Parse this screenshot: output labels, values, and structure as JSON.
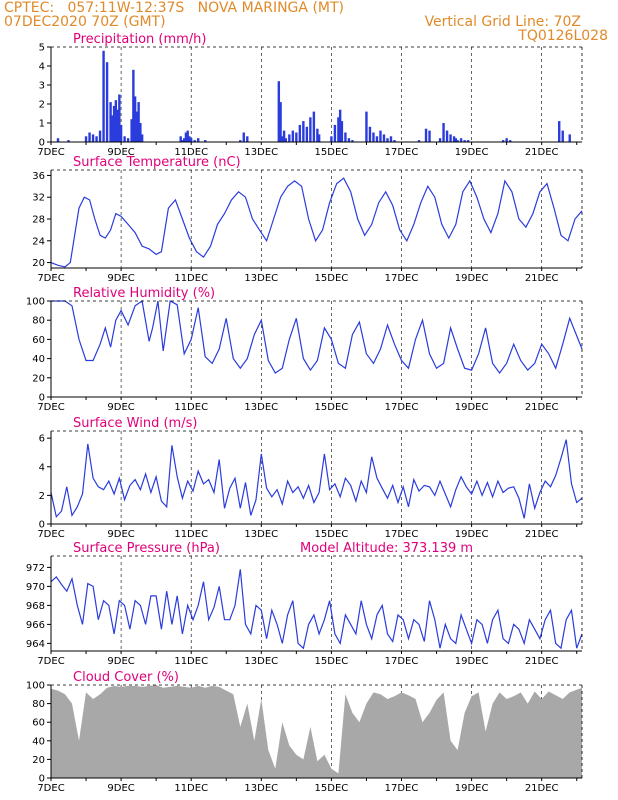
{
  "header": {
    "line1": "CPTEC:   057:11W-12:37S   NOVA MARINGA (MT)",
    "line2_left": "07DEC2020 70Z (GMT)",
    "line2_right": "Vertical Grid Line: 70Z",
    "line3_right": "TQ0126L028"
  },
  "colors": {
    "header": "#e08a2a",
    "title": "#e0007a",
    "line": "#2a3cdc",
    "cloud": "#a8a8a8"
  },
  "chart_data": [
    {
      "type": "bar",
      "title": "Precipitation (mm/h)",
      "ylim": [
        0,
        5
      ],
      "yticks": [
        "0",
        "1",
        "2",
        "3",
        "4",
        "5"
      ],
      "xticks": [
        "7DEC",
        "9DEC",
        "11DEC",
        "13DEC",
        "15DEC",
        "17DEC",
        "19DEC",
        "21DEC"
      ],
      "x": [
        0.2,
        0.5,
        1.0,
        1.1,
        1.2,
        1.3,
        1.4,
        1.5,
        1.6,
        1.7,
        1.75,
        1.8,
        1.85,
        1.9,
        1.95,
        2.0,
        2.1,
        2.2,
        2.3,
        2.35,
        2.4,
        2.45,
        2.5,
        2.55,
        2.6,
        3.7,
        3.75,
        3.8,
        3.85,
        3.9,
        3.95,
        4.0,
        4.1,
        4.2,
        4.4,
        5.4,
        5.5,
        5.6,
        6.5,
        6.55,
        6.6,
        6.65,
        6.7,
        6.8,
        6.9,
        7.0,
        7.1,
        7.2,
        7.3,
        7.4,
        7.5,
        7.6,
        7.65,
        8.0,
        8.1,
        8.2,
        8.25,
        8.3,
        8.4,
        8.5,
        8.6,
        9.0,
        9.1,
        9.2,
        9.3,
        9.4,
        9.5,
        9.6,
        9.7,
        9.8,
        10.5,
        10.7,
        10.8,
        11.1,
        11.2,
        11.3,
        11.4,
        11.5,
        11.55,
        11.6,
        11.7,
        11.8,
        11.9,
        12.9,
        13.0,
        13.1,
        14.5,
        14.6,
        14.8
      ],
      "values": [
        0.2,
        0.1,
        0.3,
        0.5,
        0.4,
        0.3,
        0.6,
        4.8,
        4.2,
        2.1,
        1.4,
        1.9,
        2.2,
        1.7,
        2.5,
        0.9,
        0.3,
        0.2,
        1.2,
        3.8,
        2.4,
        1.6,
        2.1,
        1.0,
        0.4,
        0.3,
        0.1,
        0.2,
        0.5,
        0.6,
        0.3,
        0.2,
        0.1,
        0.2,
        0.1,
        0.1,
        0.5,
        0.3,
        3.2,
        2.1,
        0.3,
        0.6,
        0.2,
        0.4,
        0.6,
        0.5,
        0.9,
        1.1,
        0.8,
        1.3,
        1.6,
        0.7,
        0.4,
        0.3,
        0.9,
        1.3,
        1.7,
        1.1,
        0.5,
        0.2,
        0.1,
        1.6,
        0.8,
        0.5,
        0.3,
        0.6,
        0.4,
        0.2,
        0.3,
        0.1,
        0.1,
        0.7,
        0.6,
        0.2,
        1.0,
        0.6,
        0.4,
        0.3,
        0.2,
        0.1,
        0.2,
        0.1,
        0.1,
        0.1,
        0.2,
        0.1,
        1.1,
        0.6,
        0.4
      ]
    },
    {
      "type": "line",
      "title": "Surface Temperature (nC)",
      "ylim": [
        19,
        37
      ],
      "yticks": [
        "20",
        "24",
        "28",
        "32",
        "36"
      ],
      "xticks": [
        "7DEC",
        "9DEC",
        "11DEC",
        "13DEC",
        "15DEC",
        "17DEC",
        "19DEC",
        "21DEC"
      ],
      "x": [
        0,
        0.2,
        0.4,
        0.55,
        0.7,
        0.8,
        0.95,
        1.1,
        1.25,
        1.4,
        1.55,
        1.7,
        1.85,
        2.0,
        2.2,
        2.4,
        2.6,
        2.8,
        3.0,
        3.15,
        3.35,
        3.55,
        3.75,
        3.95,
        4.15,
        4.35,
        4.55,
        4.75,
        4.95,
        5.15,
        5.35,
        5.55,
        5.75,
        5.95,
        6.15,
        6.35,
        6.55,
        6.75,
        6.95,
        7.15,
        7.35,
        7.55,
        7.75,
        7.95,
        8.15,
        8.35,
        8.55,
        8.75,
        8.95,
        9.15,
        9.35,
        9.55,
        9.75,
        9.95,
        10.15,
        10.35,
        10.55,
        10.75,
        10.95,
        11.15,
        11.35,
        11.55,
        11.75,
        11.95,
        12.15,
        12.35,
        12.55,
        12.75,
        12.95,
        13.15,
        13.35,
        13.55,
        13.75,
        13.95,
        14.15,
        14.35,
        14.55,
        14.75,
        14.95,
        15.15
      ],
      "values": [
        20,
        19.5,
        19.2,
        20,
        26,
        30,
        32,
        31.5,
        28,
        25,
        24.5,
        26,
        29,
        28.5,
        27,
        25.5,
        23,
        22.5,
        21.5,
        22,
        30,
        31.5,
        28,
        24.5,
        22,
        21,
        23,
        27,
        29,
        31.5,
        33,
        32,
        28,
        26,
        24,
        28,
        32,
        34,
        35,
        34,
        28,
        24,
        26,
        31,
        34.5,
        35.5,
        33,
        28,
        25,
        27,
        31,
        33,
        30.5,
        26,
        24,
        27,
        31,
        34,
        32,
        27,
        24.5,
        27,
        33,
        35,
        32,
        28,
        25.5,
        29,
        35,
        33,
        28,
        26.5,
        29,
        33,
        34.5,
        30,
        25,
        24,
        28,
        29.5
      ]
    },
    {
      "type": "line",
      "title": "Relative Humidity (%)",
      "ylim": [
        0,
        100
      ],
      "yticks": [
        "0",
        "20",
        "40",
        "60",
        "80",
        "100"
      ],
      "xticks": [
        "7DEC",
        "9DEC",
        "11DEC",
        "13DEC",
        "15DEC",
        "17DEC",
        "19DEC",
        "21DEC"
      ],
      "x": [
        0,
        0.4,
        0.6,
        0.8,
        1.0,
        1.2,
        1.4,
        1.55,
        1.7,
        1.85,
        2.0,
        2.2,
        2.4,
        2.6,
        2.8,
        2.9,
        3.05,
        3.2,
        3.4,
        3.6,
        3.8,
        4.0,
        4.2,
        4.4,
        4.6,
        4.8,
        5.0,
        5.2,
        5.4,
        5.6,
        5.8,
        6.0,
        6.2,
        6.4,
        6.6,
        6.8,
        7.0,
        7.2,
        7.4,
        7.6,
        7.8,
        8.0,
        8.2,
        8.4,
        8.6,
        8.8,
        9.0,
        9.2,
        9.4,
        9.6,
        9.8,
        10.0,
        10.2,
        10.4,
        10.6,
        10.8,
        11.0,
        11.2,
        11.4,
        11.6,
        11.8,
        12.0,
        12.2,
        12.4,
        12.6,
        12.8,
        13.0,
        13.2,
        13.4,
        13.6,
        13.8,
        14.0,
        14.2,
        14.4,
        14.6,
        14.8,
        15.15
      ],
      "values": [
        100,
        100,
        95,
        60,
        38,
        38,
        55,
        72,
        52,
        80,
        90,
        75,
        95,
        100,
        58,
        72,
        100,
        48,
        100,
        96,
        45,
        60,
        93,
        42,
        35,
        50,
        82,
        40,
        30,
        40,
        65,
        80,
        38,
        25,
        30,
        60,
        82,
        40,
        28,
        38,
        72,
        60,
        35,
        30,
        65,
        78,
        45,
        35,
        50,
        75,
        55,
        38,
        30,
        60,
        80,
        45,
        30,
        35,
        72,
        50,
        30,
        28,
        45,
        72,
        35,
        25,
        35,
        55,
        38,
        28,
        35,
        55,
        45,
        30,
        55,
        82,
        50
      ]
    },
    {
      "type": "line",
      "title": "Surface Wind (m/s)",
      "ylim": [
        0,
        6.5
      ],
      "yticks": [
        "0",
        "2",
        "4",
        "6"
      ],
      "xticks": [
        "7DEC",
        "9DEC",
        "11DEC",
        "13DEC",
        "15DEC",
        "17DEC",
        "19DEC",
        "21DEC"
      ],
      "x": [
        0,
        0.15,
        0.3,
        0.45,
        0.6,
        0.75,
        0.9,
        1.05,
        1.2,
        1.35,
        1.5,
        1.65,
        1.8,
        1.95,
        2.1,
        2.25,
        2.4,
        2.55,
        2.7,
        2.85,
        3.0,
        3.15,
        3.3,
        3.45,
        3.6,
        3.75,
        3.9,
        4.05,
        4.2,
        4.35,
        4.5,
        4.65,
        4.8,
        4.95,
        5.1,
        5.25,
        5.4,
        5.55,
        5.7,
        5.85,
        6.0,
        6.15,
        6.3,
        6.45,
        6.6,
        6.75,
        6.9,
        7.05,
        7.2,
        7.35,
        7.5,
        7.65,
        7.8,
        7.95,
        8.1,
        8.25,
        8.4,
        8.55,
        8.7,
        8.85,
        9.0,
        9.15,
        9.3,
        9.45,
        9.6,
        9.75,
        9.9,
        10.05,
        10.2,
        10.35,
        10.5,
        10.65,
        10.8,
        10.95,
        11.1,
        11.25,
        11.4,
        11.55,
        11.7,
        11.85,
        12.0,
        12.15,
        12.3,
        12.45,
        12.6,
        12.75,
        12.9,
        13.05,
        13.2,
        13.35,
        13.5,
        13.65,
        13.8,
        13.95,
        14.1,
        14.25,
        14.4,
        14.55,
        14.7,
        14.85,
        15.0,
        15.15
      ],
      "values": [
        2.2,
        0.5,
        0.9,
        2.6,
        0.6,
        1.2,
        2.1,
        5.6,
        3.2,
        2.6,
        2.4,
        3.0,
        2.1,
        3.2,
        1.7,
        2.7,
        3.1,
        2.4,
        3.5,
        2.2,
        3.3,
        1.6,
        1.2,
        5.5,
        3.3,
        1.8,
        3.0,
        2.3,
        3.7,
        2.8,
        3.1,
        2.2,
        4.5,
        1.1,
        2.5,
        3.2,
        1.1,
        2.9,
        0.6,
        1.7,
        4.9,
        2.5,
        1.9,
        2.4,
        1.4,
        3.0,
        2.2,
        2.6,
        1.8,
        2.7,
        1.5,
        2.2,
        4.9,
        2.4,
        2.8,
        1.9,
        3.2,
        2.7,
        1.6,
        3.0,
        2.2,
        4.7,
        3.2,
        2.5,
        1.8,
        2.7,
        1.5,
        2.6,
        1.2,
        3.1,
        2.3,
        2.7,
        2.6,
        2.0,
        3.0,
        2.1,
        1.2,
        2.4,
        3.3,
        2.6,
        2.1,
        3.0,
        2.0,
        2.9,
        1.9,
        3.0,
        2.2,
        2.5,
        2.6,
        1.8,
        0.4,
        2.8,
        1.1,
        2.2,
        3.0,
        2.6,
        3.4,
        4.6,
        5.9,
        2.8,
        1.5,
        1.8
      ]
    },
    {
      "type": "line",
      "title": "Surface Pressure (hPa)",
      "annotation": "Model Altitude: 373.139  m",
      "ylim": [
        963.2,
        973.2
      ],
      "yticks": [
        "964",
        "966",
        "968",
        "970",
        "972"
      ],
      "xticks": [
        "7DEC",
        "9DEC",
        "11DEC",
        "13DEC",
        "15DEC",
        "17DEC",
        "19DEC",
        "21DEC"
      ],
      "x": [
        0,
        0.15,
        0.3,
        0.45,
        0.6,
        0.75,
        0.9,
        1.05,
        1.2,
        1.35,
        1.5,
        1.65,
        1.8,
        1.95,
        2.1,
        2.25,
        2.4,
        2.55,
        2.7,
        2.85,
        3.0,
        3.15,
        3.3,
        3.45,
        3.6,
        3.75,
        3.9,
        4.05,
        4.2,
        4.35,
        4.5,
        4.65,
        4.8,
        4.95,
        5.1,
        5.25,
        5.4,
        5.55,
        5.7,
        5.85,
        6.0,
        6.15,
        6.3,
        6.45,
        6.6,
        6.75,
        6.9,
        7.05,
        7.2,
        7.35,
        7.5,
        7.65,
        7.8,
        7.95,
        8.1,
        8.25,
        8.4,
        8.55,
        8.7,
        8.85,
        9.0,
        9.15,
        9.3,
        9.45,
        9.6,
        9.75,
        9.9,
        10.05,
        10.2,
        10.35,
        10.5,
        10.65,
        10.8,
        10.95,
        11.1,
        11.25,
        11.4,
        11.55,
        11.7,
        11.85,
        12.0,
        12.15,
        12.3,
        12.45,
        12.6,
        12.75,
        12.9,
        13.05,
        13.2,
        13.35,
        13.5,
        13.65,
        13.8,
        13.95,
        14.1,
        14.25,
        14.4,
        14.55,
        14.7,
        14.85,
        15.0,
        15.15
      ],
      "values": [
        970.5,
        971,
        970.2,
        969.5,
        970.8,
        968,
        966,
        970.3,
        970,
        966.5,
        968.5,
        968,
        965,
        968.5,
        968,
        965.5,
        968.5,
        968,
        966,
        969,
        969,
        965.5,
        969.5,
        966,
        969,
        965,
        968,
        966.5,
        968,
        970.5,
        966.5,
        967.8,
        970,
        966.5,
        966.5,
        968,
        971.8,
        966,
        965,
        968,
        967.5,
        964.5,
        967.5,
        966,
        964,
        967,
        968.5,
        964,
        963.5,
        966,
        967,
        965,
        966.5,
        968.5,
        965,
        964,
        967,
        966,
        965,
        968.5,
        966,
        964.5,
        967,
        968,
        965,
        964.2,
        967,
        966.5,
        964.5,
        966.5,
        966,
        964.2,
        968.5,
        966.5,
        963.5,
        966,
        964.5,
        964,
        967,
        965.5,
        964,
        966.5,
        966,
        964,
        966.5,
        967.5,
        964.5,
        964,
        966,
        965.5,
        964,
        966.5,
        965.5,
        964.5,
        966.5,
        967.5,
        964,
        963.5,
        966.5,
        967.5,
        963.5,
        965
      ]
    },
    {
      "type": "area",
      "title": "Cloud Cover (%)",
      "ylim": [
        0,
        100
      ],
      "yticks": [
        "0",
        "20",
        "40",
        "60",
        "80",
        "100"
      ],
      "xticks": [
        "7DEC",
        "9DEC",
        "11DEC",
        "13DEC",
        "15DEC",
        "17DEC",
        "19DEC",
        "21DEC"
      ],
      "x": [
        0,
        0.2,
        0.4,
        0.6,
        0.8,
        1.0,
        1.2,
        1.4,
        1.6,
        1.8,
        2.0,
        2.2,
        2.4,
        2.6,
        2.8,
        3.0,
        3.2,
        3.4,
        3.6,
        3.8,
        4.0,
        4.2,
        4.4,
        4.6,
        4.8,
        5.0,
        5.2,
        5.4,
        5.6,
        5.8,
        6.0,
        6.2,
        6.4,
        6.6,
        6.8,
        7.0,
        7.2,
        7.4,
        7.6,
        7.8,
        8.0,
        8.2,
        8.4,
        8.6,
        8.8,
        9.0,
        9.2,
        9.4,
        9.6,
        9.8,
        10.0,
        10.2,
        10.4,
        10.6,
        10.8,
        11.0,
        11.2,
        11.4,
        11.6,
        11.8,
        12.0,
        12.2,
        12.4,
        12.6,
        12.8,
        13.0,
        13.2,
        13.4,
        13.6,
        13.8,
        14.0,
        14.2,
        14.4,
        14.6,
        14.8,
        15.15
      ],
      "values": [
        96,
        94,
        90,
        80,
        40,
        92,
        85,
        90,
        97,
        99,
        98,
        99,
        99,
        98,
        99,
        100,
        97,
        98,
        99,
        98,
        97,
        99,
        97,
        99,
        98,
        94,
        90,
        55,
        80,
        40,
        85,
        30,
        10,
        60,
        35,
        25,
        20,
        55,
        18,
        25,
        10,
        5,
        90,
        70,
        60,
        80,
        92,
        90,
        85,
        88,
        92,
        89,
        85,
        60,
        70,
        84,
        92,
        40,
        30,
        70,
        88,
        92,
        50,
        80,
        92,
        85,
        88,
        92,
        80,
        93,
        85,
        93,
        89,
        85,
        92,
        97
      ]
    }
  ]
}
